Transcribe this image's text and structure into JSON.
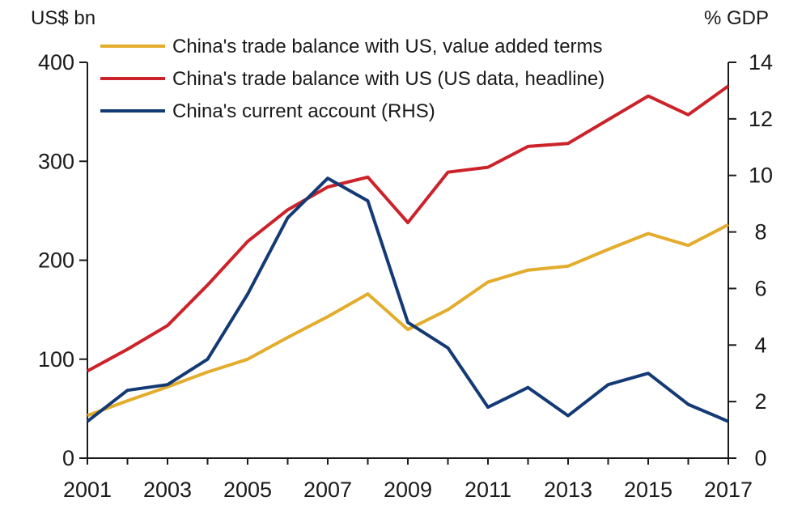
{
  "chart_data": {
    "type": "line",
    "y_left_unit": "US$ bn",
    "y_right_unit": "% GDP",
    "x": [
      2001,
      2002,
      2003,
      2004,
      2005,
      2006,
      2007,
      2008,
      2009,
      2010,
      2011,
      2012,
      2013,
      2014,
      2015,
      2016,
      2017
    ],
    "xticks": [
      "2001",
      "2003",
      "2005",
      "2007",
      "2009",
      "2011",
      "2013",
      "2015",
      "2017"
    ],
    "ylim_left": [
      0,
      400
    ],
    "yticks_left": [
      "0",
      "100",
      "200",
      "300",
      "400"
    ],
    "ylim_right": [
      0,
      14
    ],
    "yticks_right": [
      "0",
      "2",
      "4",
      "6",
      "8",
      "10",
      "12",
      "14"
    ],
    "grid": false,
    "legend_position": "top-left",
    "series": [
      {
        "name": "China's trade balance with US, value added terms",
        "axis": "left",
        "color": "#e3ac2c",
        "values": [
          43,
          58,
          72,
          87,
          100,
          122,
          143,
          166,
          130,
          150,
          178,
          190,
          194,
          211,
          227,
          215,
          236
        ]
      },
      {
        "name": "China's trade balance with US (US data, headline)",
        "axis": "left",
        "color": "#cc2229",
        "values": [
          88,
          110,
          134,
          175,
          219,
          251,
          274,
          284,
          238,
          289,
          294,
          315,
          318,
          342,
          366,
          347,
          376
        ]
      },
      {
        "name": "China's current account (RHS)",
        "axis": "right",
        "color": "#143a75",
        "values": [
          1.3,
          2.4,
          2.6,
          3.5,
          5.8,
          8.5,
          9.9,
          9.1,
          4.8,
          3.9,
          1.8,
          2.5,
          1.5,
          2.6,
          3.0,
          1.9,
          1.3
        ]
      }
    ]
  }
}
